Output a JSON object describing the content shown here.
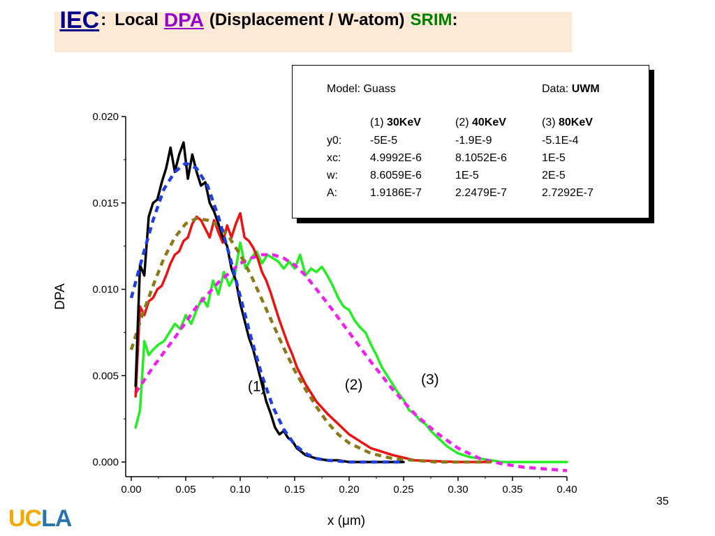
{
  "title": {
    "iec": "IEC",
    "colon1": ":",
    "local": "Local",
    "dpa": "DPA",
    "rest": "(Displacement / W-atom)",
    "srim": "SRIM",
    "colon2": ":"
  },
  "slide_number": "35",
  "logo": {
    "uc": "UC",
    "la": "LA"
  },
  "legend": {
    "model_label": "Model: Guass",
    "data_prefix": "Data: ",
    "data_value": "UWM",
    "columns": [
      {
        "prefix": "(1) ",
        "energy": "30KeV"
      },
      {
        "prefix": "(2) ",
        "energy": "40KeV"
      },
      {
        "prefix": "(3) ",
        "energy": "80KeV"
      }
    ],
    "rows": [
      {
        "param": "y0:",
        "values": [
          "-5E-5",
          "-1.9E-9",
          "-5.1E-4"
        ]
      },
      {
        "param": "xc:",
        "values": [
          "4.9992E-6",
          "8.1052E-6",
          "1E-5"
        ]
      },
      {
        "param": "w:",
        "values": [
          "8.6059E-6",
          "1E-5",
          "2E-5"
        ]
      },
      {
        "param": "A:",
        "values": [
          "1.9186E-7",
          "2.2479E-7",
          "2.7292E-7"
        ]
      }
    ]
  },
  "colors": {
    "series1_data": "#000000",
    "series1_fit": "#1f3fe0",
    "series2_data": "#ee1111",
    "series2_fit": "#8b7a1a",
    "series3_data": "#22ee22",
    "series3_fit": "#ee22ee",
    "title_bg": "#fce9d6"
  },
  "chart_data": {
    "type": "line",
    "xlabel": "x (μm)",
    "ylabel": "DPA",
    "xlim": [
      0.0,
      0.4
    ],
    "ylim": [
      0.0,
      0.02
    ],
    "x_ticks": [
      "0.00",
      "0.05",
      "0.10",
      "0.15",
      "0.20",
      "0.25",
      "0.30",
      "0.35",
      "0.40"
    ],
    "y_ticks": [
      "0.000",
      "0.005",
      "0.010",
      "0.015",
      "0.020"
    ],
    "grid": false,
    "annotations": [
      {
        "text": "(1)",
        "x": 0.107,
        "y": 0.0041
      },
      {
        "text": "(2)",
        "x": 0.196,
        "y": 0.0042
      },
      {
        "text": "(3)",
        "x": 0.266,
        "y": 0.0045
      }
    ],
    "series": [
      {
        "style": "solid",
        "x": [
          0.004,
          0.008,
          0.012,
          0.016,
          0.02,
          0.024,
          0.028,
          0.032,
          0.036,
          0.04,
          0.044,
          0.048,
          0.052,
          0.056,
          0.06,
          0.064,
          0.068,
          0.072,
          0.076,
          0.08,
          0.084,
          0.088,
          0.092,
          0.096,
          0.1,
          0.104,
          0.108,
          0.112,
          0.116,
          0.12,
          0.124,
          0.128,
          0.132,
          0.136,
          0.14,
          0.144,
          0.148,
          0.152,
          0.156,
          0.16,
          0.17,
          0.18,
          0.19,
          0.2,
          0.22,
          0.25
        ],
        "y": [
          0.0044,
          0.0114,
          0.0108,
          0.0142,
          0.015,
          0.0152,
          0.0162,
          0.017,
          0.0182,
          0.0168,
          0.0178,
          0.0185,
          0.0164,
          0.0178,
          0.0168,
          0.016,
          0.0162,
          0.015,
          0.0145,
          0.0138,
          0.013,
          0.0125,
          0.0112,
          0.0105,
          0.0092,
          0.0082,
          0.0072,
          0.0065,
          0.0055,
          0.0045,
          0.0035,
          0.0028,
          0.002,
          0.0016,
          0.0018,
          0.0014,
          0.0012,
          0.0008,
          0.0006,
          0.0004,
          0.0002,
          0.0001,
          0.0001,
          0.0,
          0.0,
          0.0
        ]
      },
      {
        "style": "dashed",
        "x": [
          0.0,
          0.01,
          0.02,
          0.03,
          0.04,
          0.05,
          0.06,
          0.07,
          0.08,
          0.09,
          0.1,
          0.11,
          0.12,
          0.13,
          0.14,
          0.15,
          0.16,
          0.17,
          0.18,
          0.2,
          0.22,
          0.25
        ],
        "y": [
          0.0095,
          0.0118,
          0.014,
          0.0158,
          0.0168,
          0.0173,
          0.017,
          0.016,
          0.0142,
          0.012,
          0.0096,
          0.0072,
          0.005,
          0.0032,
          0.0019,
          0.001,
          0.0005,
          0.0002,
          0.0001,
          0.0,
          0.0,
          0.0
        ]
      },
      {
        "style": "solid",
        "x": [
          0.004,
          0.008,
          0.012,
          0.016,
          0.02,
          0.024,
          0.028,
          0.032,
          0.036,
          0.04,
          0.044,
          0.048,
          0.052,
          0.056,
          0.06,
          0.064,
          0.068,
          0.072,
          0.076,
          0.08,
          0.084,
          0.088,
          0.092,
          0.096,
          0.1,
          0.104,
          0.108,
          0.112,
          0.116,
          0.12,
          0.124,
          0.128,
          0.132,
          0.136,
          0.14,
          0.144,
          0.148,
          0.152,
          0.156,
          0.16,
          0.17,
          0.18,
          0.19,
          0.2,
          0.21,
          0.22,
          0.24,
          0.26,
          0.3,
          0.33
        ],
        "y": [
          0.0038,
          0.009,
          0.0085,
          0.0093,
          0.0095,
          0.01,
          0.0102,
          0.0108,
          0.0115,
          0.012,
          0.0122,
          0.0128,
          0.013,
          0.0138,
          0.0142,
          0.014,
          0.0135,
          0.013,
          0.014,
          0.0133,
          0.0127,
          0.0137,
          0.013,
          0.0138,
          0.0144,
          0.013,
          0.0128,
          0.0124,
          0.0118,
          0.011,
          0.0105,
          0.0098,
          0.009,
          0.0082,
          0.0075,
          0.0068,
          0.0062,
          0.0055,
          0.005,
          0.0045,
          0.0035,
          0.0028,
          0.0022,
          0.0016,
          0.0012,
          0.0008,
          0.0004,
          0.0001,
          0.0,
          0.0
        ]
      },
      {
        "style": "dashed",
        "x": [
          0.0,
          0.01,
          0.02,
          0.03,
          0.04,
          0.05,
          0.06,
          0.07,
          0.08,
          0.09,
          0.1,
          0.11,
          0.12,
          0.13,
          0.14,
          0.15,
          0.16,
          0.17,
          0.18,
          0.19,
          0.2,
          0.22,
          0.24,
          0.26,
          0.28,
          0.3,
          0.33
        ],
        "y": [
          0.0065,
          0.0085,
          0.0102,
          0.0118,
          0.013,
          0.0138,
          0.0141,
          0.014,
          0.0137,
          0.013,
          0.012,
          0.0108,
          0.0094,
          0.008,
          0.0066,
          0.0053,
          0.0042,
          0.0032,
          0.0023,
          0.0016,
          0.0011,
          0.0005,
          0.0002,
          0.0001,
          0.0,
          0.0,
          0.0
        ]
      },
      {
        "style": "solid",
        "x": [
          0.004,
          0.008,
          0.012,
          0.016,
          0.02,
          0.025,
          0.03,
          0.035,
          0.04,
          0.045,
          0.05,
          0.055,
          0.06,
          0.065,
          0.07,
          0.075,
          0.08,
          0.085,
          0.09,
          0.095,
          0.1,
          0.105,
          0.11,
          0.115,
          0.12,
          0.125,
          0.13,
          0.135,
          0.14,
          0.145,
          0.15,
          0.155,
          0.16,
          0.165,
          0.17,
          0.175,
          0.18,
          0.185,
          0.19,
          0.195,
          0.2,
          0.205,
          0.21,
          0.215,
          0.22,
          0.225,
          0.23,
          0.235,
          0.24,
          0.245,
          0.25,
          0.255,
          0.26,
          0.265,
          0.27,
          0.275,
          0.28,
          0.285,
          0.29,
          0.295,
          0.3,
          0.31,
          0.32,
          0.33,
          0.34,
          0.36,
          0.38,
          0.4
        ],
        "y": [
          0.002,
          0.003,
          0.007,
          0.0062,
          0.0065,
          0.0068,
          0.007,
          0.0075,
          0.008,
          0.0077,
          0.0085,
          0.008,
          0.0088,
          0.0095,
          0.009,
          0.0105,
          0.0097,
          0.011,
          0.0102,
          0.0108,
          0.0127,
          0.0112,
          0.0118,
          0.0122,
          0.0115,
          0.012,
          0.0118,
          0.0116,
          0.0112,
          0.0116,
          0.0112,
          0.012,
          0.0108,
          0.0112,
          0.011,
          0.0113,
          0.0108,
          0.0102,
          0.0095,
          0.009,
          0.0088,
          0.0082,
          0.0078,
          0.0075,
          0.0068,
          0.0062,
          0.0055,
          0.005,
          0.0045,
          0.004,
          0.0036,
          0.003,
          0.0028,
          0.0024,
          0.0022,
          0.0018,
          0.0015,
          0.0012,
          0.0009,
          0.0007,
          0.0005,
          0.0003,
          0.0002,
          0.0001,
          0.0,
          0.0,
          0.0,
          0.0
        ]
      },
      {
        "style": "dashed",
        "x": [
          0.004,
          0.02,
          0.04,
          0.06,
          0.08,
          0.1,
          0.11,
          0.12,
          0.13,
          0.14,
          0.15,
          0.16,
          0.17,
          0.18,
          0.2,
          0.22,
          0.24,
          0.26,
          0.28,
          0.3,
          0.32,
          0.34,
          0.36,
          0.38,
          0.4
        ],
        "y": [
          0.004,
          0.0055,
          0.0072,
          0.009,
          0.0104,
          0.0115,
          0.0118,
          0.012,
          0.012,
          0.0118,
          0.0114,
          0.0108,
          0.01,
          0.0092,
          0.0075,
          0.0058,
          0.0042,
          0.0028,
          0.0017,
          0.0008,
          0.0002,
          -0.0001,
          -0.0003,
          -0.0004,
          -0.0005
        ]
      }
    ]
  }
}
